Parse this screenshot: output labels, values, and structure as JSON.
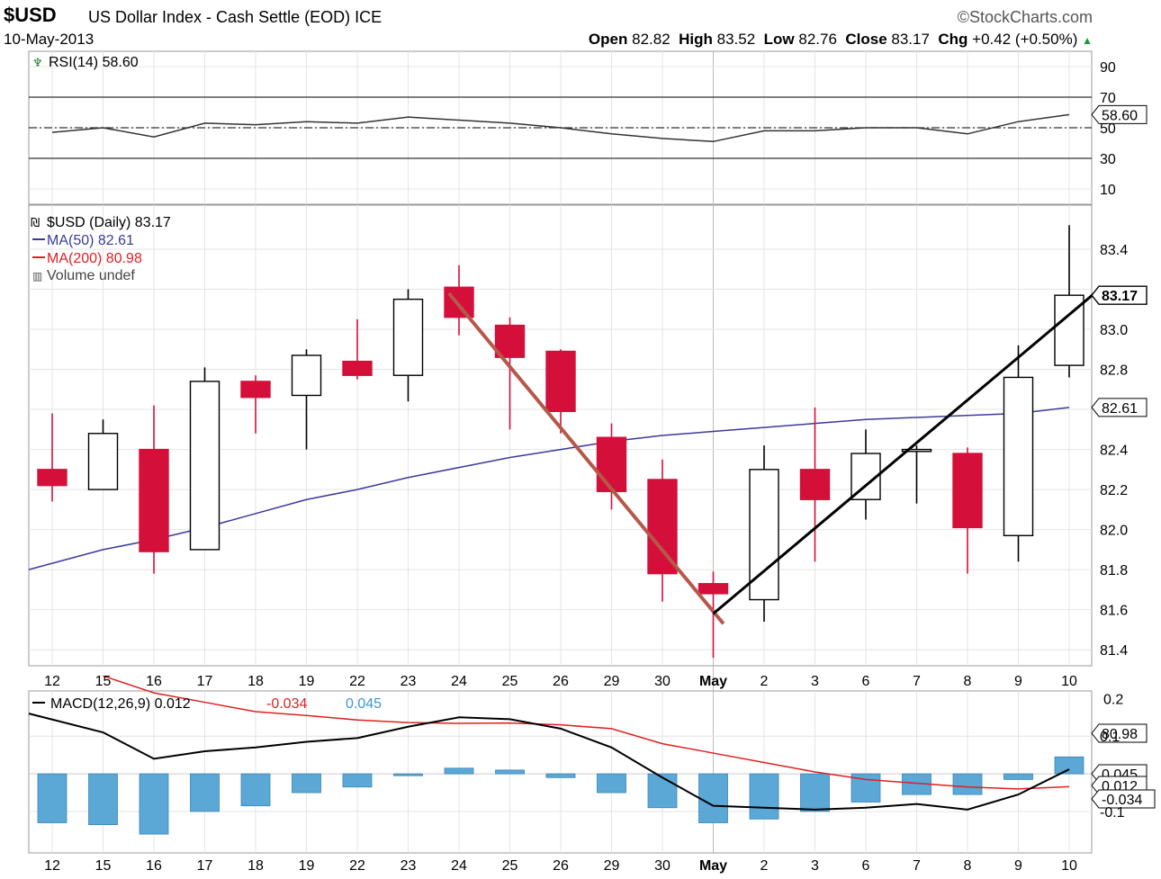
{
  "header": {
    "symbol": "$USD",
    "title": "US Dollar Index - Cash Settle (EOD)",
    "exchange": "ICE",
    "date": "10-May-2013",
    "watermark": "©StockCharts.com",
    "open_label": "Open",
    "open": "82.82",
    "high_label": "High",
    "high": "83.52",
    "low_label": "Low",
    "low": "82.76",
    "close_label": "Close",
    "close": "83.17",
    "chg_label": "Chg",
    "chg": "+0.42 (+0.50%)"
  },
  "colors": {
    "up_candle": "#ffffff",
    "down_candle": "#d40f3a",
    "ma50": "#3a3a9e",
    "ma200": "#e02020",
    "macd_line": "#000000",
    "macd_signal": "#e02020",
    "macd_hist": "#5ba7d6",
    "trend_down": "#b5584a",
    "trend_up": "#000000"
  },
  "chart_data": [
    {
      "type": "line",
      "panel": "rsi",
      "legend": "RSI(14) 58.60",
      "x": [
        "12",
        "15",
        "16",
        "17",
        "18",
        "19",
        "22",
        "23",
        "24",
        "25",
        "26",
        "29",
        "30",
        "May",
        "2",
        "3",
        "6",
        "7",
        "8",
        "9",
        "10"
      ],
      "values": [
        47,
        50,
        44,
        53,
        52,
        54,
        53,
        57,
        55,
        53,
        50,
        46,
        43,
        41,
        48,
        48,
        50,
        50,
        46,
        54,
        58.6
      ],
      "ylim": [
        0,
        100
      ],
      "yticks": [
        10,
        30,
        50,
        70,
        90
      ],
      "ref_lines": [
        30,
        50,
        70
      ],
      "last_label": "58.60"
    },
    {
      "type": "candlestick",
      "panel": "price",
      "legend": {
        "price": "$USD (Daily) 83.17",
        "ma50": "MA(50) 82.61",
        "ma200": "MA(200) 80.98",
        "volume": "Volume undef"
      },
      "x": [
        "12",
        "15",
        "16",
        "17",
        "18",
        "19",
        "22",
        "23",
        "24",
        "25",
        "26",
        "29",
        "30",
        "May",
        "2",
        "3",
        "6",
        "7",
        "8",
        "9",
        "10"
      ],
      "ohlc": [
        [
          82.3,
          82.58,
          82.14,
          82.22
        ],
        [
          82.2,
          82.55,
          82.2,
          82.48
        ],
        [
          82.4,
          82.62,
          81.78,
          81.89
        ],
        [
          81.9,
          82.81,
          81.9,
          82.74
        ],
        [
          82.74,
          82.77,
          82.48,
          82.66
        ],
        [
          82.67,
          82.9,
          82.4,
          82.87
        ],
        [
          82.84,
          83.05,
          82.75,
          82.77
        ],
        [
          82.77,
          83.2,
          82.64,
          83.15
        ],
        [
          83.21,
          83.32,
          82.97,
          83.06
        ],
        [
          83.02,
          83.06,
          82.5,
          82.86
        ],
        [
          82.89,
          82.9,
          82.48,
          82.59
        ],
        [
          82.46,
          82.53,
          82.1,
          82.19
        ],
        [
          82.25,
          82.35,
          81.64,
          81.78
        ],
        [
          81.73,
          81.79,
          81.36,
          81.68
        ],
        [
          81.65,
          82.42,
          81.54,
          82.3
        ],
        [
          82.3,
          82.61,
          81.84,
          82.15
        ],
        [
          82.15,
          82.5,
          82.05,
          82.38
        ],
        [
          82.39,
          82.42,
          82.13,
          82.4
        ],
        [
          82.38,
          82.41,
          81.78,
          82.01
        ],
        [
          81.97,
          82.92,
          81.84,
          82.76
        ],
        [
          82.82,
          83.52,
          82.76,
          83.17
        ]
      ],
      "ma50": [
        81.8,
        81.9,
        81.95,
        82.01,
        82.08,
        82.15,
        82.2,
        82.26,
        82.31,
        82.36,
        82.4,
        82.44,
        82.47,
        82.49,
        82.51,
        82.53,
        82.55,
        82.56,
        82.57,
        82.58,
        82.61
      ],
      "ylim": [
        81.32,
        83.62
      ],
      "yticks": [
        81.4,
        81.6,
        81.8,
        82.0,
        82.2,
        82.4,
        82.6,
        82.8,
        83.0,
        83.2,
        83.4
      ],
      "ytick_labels": [
        "81.4",
        "81.6",
        "81.8",
        "82.0",
        "82.2",
        "82.4",
        "",
        "82.8",
        "83.0",
        "",
        "83.4"
      ],
      "price_label": "83.17",
      "ma50_label": "82.61",
      "trendlines": [
        {
          "name": "downtrend",
          "from": [
            "23.8",
            83.18
          ],
          "to": [
            "May+0.2",
            81.53
          ]
        },
        {
          "name": "uptrend",
          "from": [
            "May",
            81.58
          ],
          "to": [
            "10+0.5",
            83.18
          ]
        }
      ]
    },
    {
      "type": "bar",
      "panel": "macd",
      "legend": {
        "macd": "MACD(12,26,9) 0.012",
        "signal": "-0.034",
        "hist": "0.045"
      },
      "x": [
        "12",
        "15",
        "16",
        "17",
        "18",
        "19",
        "22",
        "23",
        "24",
        "25",
        "26",
        "29",
        "30",
        "May",
        "2",
        "3",
        "6",
        "7",
        "8",
        "9",
        "10"
      ],
      "macd": [
        0.16,
        0.11,
        0.04,
        0.06,
        0.07,
        0.085,
        0.095,
        0.125,
        0.15,
        0.145,
        0.12,
        0.07,
        -0.01,
        -0.085,
        -0.09,
        -0.095,
        -0.09,
        -0.08,
        -0.095,
        -0.055,
        0.012
      ],
      "signal": [
        null,
        0.26,
        0.215,
        0.19,
        0.165,
        0.155,
        0.143,
        0.136,
        0.134,
        0.135,
        0.13,
        0.12,
        0.08,
        0.055,
        0.03,
        0.005,
        -0.015,
        -0.025,
        -0.035,
        -0.04,
        -0.034
      ],
      "hist": [
        -0.13,
        -0.135,
        -0.16,
        -0.1,
        -0.085,
        -0.05,
        -0.035,
        -0.005,
        0.015,
        0.01,
        -0.01,
        -0.05,
        -0.09,
        -0.13,
        -0.12,
        -0.1,
        -0.075,
        -0.055,
        -0.055,
        -0.015,
        0.045
      ],
      "ylim": [
        -0.21,
        0.22
      ],
      "yticks": [
        -0.1,
        0.1
      ],
      "ytick_labels": [
        "-0.1",
        "0.1"
      ],
      "top_tick_label": "0.2",
      "badges": [
        "80.98",
        "0.045",
        "0.012",
        "-0.034"
      ]
    }
  ]
}
